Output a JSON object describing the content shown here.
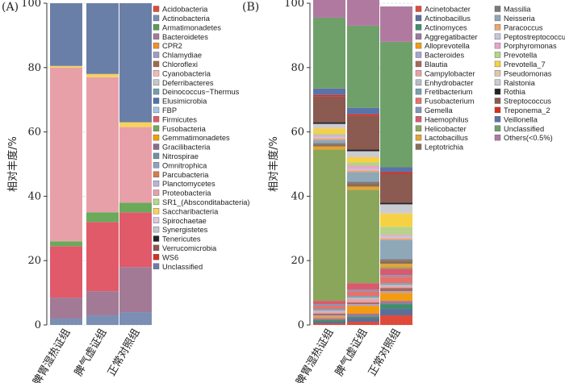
{
  "chart_data": [
    {
      "panel_label": "(A)",
      "type": "bar",
      "stacked": true,
      "categories": [
        "脾胃湿热证组",
        "脾气虚证组",
        "正常对照组"
      ],
      "ylabel": "相对丰度/%",
      "ylim": [
        0,
        100
      ],
      "yticks": [
        0,
        20,
        40,
        60,
        80,
        100
      ],
      "grid": true,
      "legend_placement": "right",
      "series": [
        {
          "name": "Acidobacteria",
          "color": "#e34a33",
          "values": [
            0,
            0,
            0
          ]
        },
        {
          "name": "Actinobacteria",
          "color": "#7b8fb5",
          "values": [
            2.0,
            3.0,
            4.0
          ]
        },
        {
          "name": "Armatimonadetes",
          "color": "#5c9a55",
          "values": [
            0,
            0,
            0
          ]
        },
        {
          "name": "Bacteroidetes",
          "color": "#a27a96",
          "values": [
            6.5,
            7.5,
            14.0
          ]
        },
        {
          "name": "CPR2",
          "color": "#f28e2b",
          "values": [
            0,
            0,
            0
          ]
        },
        {
          "name": "Chlamydiae",
          "color": "#9e9ac8",
          "values": [
            0,
            0,
            0
          ]
        },
        {
          "name": "Chloroflexi",
          "color": "#a06a4a",
          "values": [
            0,
            0,
            0
          ]
        },
        {
          "name": "Cyanobacteria",
          "color": "#f4b8b8",
          "values": [
            0,
            0,
            0
          ]
        },
        {
          "name": "Deferribacteres",
          "color": "#c7c7c7",
          "values": [
            0,
            0,
            0
          ]
        },
        {
          "name": "Deinococcus−Thermus",
          "color": "#6f9fb3",
          "values": [
            0,
            0,
            0
          ]
        },
        {
          "name": "Elusimicrobia",
          "color": "#4c72b0",
          "values": [
            0,
            0,
            0
          ]
        },
        {
          "name": "FBP",
          "color": "#9fc5e8",
          "values": [
            0,
            0,
            0
          ]
        },
        {
          "name": "Firmicutes",
          "color": "#e05a6a",
          "values": [
            16.0,
            21.5,
            17.0
          ]
        },
        {
          "name": "Fusobacteria",
          "color": "#6aaa5a",
          "values": [
            1.5,
            3.0,
            3.0
          ]
        },
        {
          "name": "Gemmatimonadetes",
          "color": "#f0a000",
          "values": [
            0,
            0,
            0
          ]
        },
        {
          "name": "Gracilibacteria",
          "color": "#8b6b8b",
          "values": [
            0,
            0,
            0
          ]
        },
        {
          "name": "Nitrospirae",
          "color": "#6f8fa6",
          "values": [
            0,
            0,
            0
          ]
        },
        {
          "name": "Omnitrophica",
          "color": "#8fa0c8",
          "values": [
            0,
            0,
            0
          ]
        },
        {
          "name": "Parcubacteria",
          "color": "#d67c4b",
          "values": [
            0,
            0,
            0
          ]
        },
        {
          "name": "Planctomycetes",
          "color": "#b7b3d9",
          "values": [
            0,
            0,
            0
          ]
        },
        {
          "name": "Proteobacteria",
          "color": "#e8a0a8",
          "values": [
            54.0,
            42.0,
            23.5
          ]
        },
        {
          "name": "SR1_(Absconditabacteria)",
          "color": "#b6d88a",
          "values": [
            0,
            0,
            0
          ]
        },
        {
          "name": "Saccharibacteria",
          "color": "#f7d25c",
          "values": [
            0.5,
            1.0,
            1.5
          ]
        },
        {
          "name": "Spirochaetae",
          "color": "#d9c8e0",
          "values": [
            0,
            0,
            0
          ]
        },
        {
          "name": "Synergistetes",
          "color": "#c0c7cf",
          "values": [
            0,
            0,
            0
          ]
        },
        {
          "name": "Tenericutes",
          "color": "#222222",
          "values": [
            0,
            0,
            0
          ]
        },
        {
          "name": "Verrucomicrobia",
          "color": "#8c564b",
          "values": [
            0,
            0,
            0
          ]
        },
        {
          "name": "WS6",
          "color": "#d7301f",
          "values": [
            0,
            0,
            0
          ]
        },
        {
          "name": "Unclassified",
          "color": "#6a7fa8",
          "values": [
            19.5,
            22.0,
            37.0
          ]
        }
      ]
    },
    {
      "panel_label": "(B)",
      "type": "bar",
      "stacked": true,
      "categories": [
        "脾胃湿热证组",
        "脾气虚证组",
        "正常对照组"
      ],
      "ylabel": "相对丰度/%",
      "ylim": [
        0,
        100
      ],
      "yticks": [
        0,
        20,
        40,
        60,
        80,
        100
      ],
      "grid": true,
      "legend_placement": "right",
      "series": [
        {
          "name": "Acinetobacter",
          "color": "#e04a3a",
          "values": [
            0.5,
            1.0,
            3.0
          ]
        },
        {
          "name": "Actinobacillus",
          "color": "#5a6f9a",
          "values": [
            0.5,
            1.0,
            2.0
          ]
        },
        {
          "name": "Actinomyces",
          "color": "#3f8f6f",
          "values": [
            0.5,
            0.5,
            1.5
          ]
        },
        {
          "name": "Aggregatibacter",
          "color": "#9a7a9a",
          "values": [
            0.5,
            1.0,
            1.0
          ]
        },
        {
          "name": "Alloprevotella",
          "color": "#f39c12",
          "values": [
            0.5,
            2.5,
            2.5
          ]
        },
        {
          "name": "Bacteroides",
          "color": "#a9a3d1",
          "values": [
            0.5,
            0.5,
            0.5
          ]
        },
        {
          "name": "Blautia",
          "color": "#a9675a",
          "values": [
            0.5,
            0.5,
            1.0
          ]
        },
        {
          "name": "Campylobacter",
          "color": "#eaa0a5",
          "values": [
            0.5,
            1.0,
            0.5
          ]
        },
        {
          "name": "Enhydrobacter",
          "color": "#b8bcc5",
          "values": [
            0.5,
            0.5,
            0.5
          ]
        },
        {
          "name": "Fretibacterium",
          "color": "#7aa0b2",
          "values": [
            0.5,
            0.5,
            0.5
          ]
        },
        {
          "name": "Fusobacterium",
          "color": "#e8706a",
          "values": [
            1.0,
            1.5,
            2.0
          ]
        },
        {
          "name": "Gemella",
          "color": "#7f96b8",
          "values": [
            0.5,
            0.5,
            0.5
          ]
        },
        {
          "name": "Haemophilus",
          "color": "#d95a6e",
          "values": [
            1.0,
            2.0,
            2.0
          ]
        },
        {
          "name": "Helicobacter",
          "color": "#8aa65a",
          "values": [
            47.0,
            29.0,
            0.5
          ]
        },
        {
          "name": "Lactobacillus",
          "color": "#e8a232",
          "values": [
            1.0,
            1.0,
            1.0
          ]
        },
        {
          "name": "Leptotrichia",
          "color": "#8b6e57",
          "values": [
            0.5,
            1.0,
            1.0
          ]
        },
        {
          "name": "Massilia",
          "color": "#7a7a7a",
          "values": [
            0.5,
            0.5,
            0.5
          ]
        },
        {
          "name": "Neisseria",
          "color": "#8fa8b8",
          "values": [
            1.0,
            3.0,
            6.0
          ]
        },
        {
          "name": "Paracoccus",
          "color": "#f2a46a",
          "values": [
            0.5,
            0.5,
            0.5
          ]
        },
        {
          "name": "Peptostreptococcus",
          "color": "#c8c4e0",
          "values": [
            0.5,
            0.5,
            0.5
          ]
        },
        {
          "name": "Porphyromonas",
          "color": "#e6a6c8",
          "values": [
            0.5,
            1.0,
            0.5
          ]
        },
        {
          "name": "Prevotella",
          "color": "#b5d38a",
          "values": [
            0.5,
            1.0,
            2.5
          ]
        },
        {
          "name": "Prevotella_7",
          "color": "#f6d143",
          "values": [
            1.5,
            1.5,
            4.0
          ]
        },
        {
          "name": "Pseudomonas",
          "color": "#dcc9ad",
          "values": [
            0.5,
            0.5,
            0.5
          ]
        },
        {
          "name": "Ralstonia",
          "color": "#c9ccd2",
          "values": [
            1.0,
            1.5,
            2.5
          ]
        },
        {
          "name": "Rothia",
          "color": "#222222",
          "values": [
            0.5,
            0.5,
            0.5
          ]
        },
        {
          "name": "Streptococcus",
          "color": "#8b5a50",
          "values": [
            8.0,
            10.5,
            9.0
          ]
        },
        {
          "name": "Treponema_2",
          "color": "#d7301f",
          "values": [
            0.5,
            0.5,
            0.5
          ]
        },
        {
          "name": "Veillonella",
          "color": "#5a73a8",
          "values": [
            2.0,
            2.0,
            1.5
          ]
        },
        {
          "name": "Unclassified",
          "color": "#6fa06a",
          "values": [
            22.0,
            25.5,
            39.0
          ]
        },
        {
          "name": "Others(<0.5%)",
          "color": "#b07aa0",
          "values": [
            7.0,
            8.5,
            11.0
          ]
        }
      ]
    }
  ]
}
